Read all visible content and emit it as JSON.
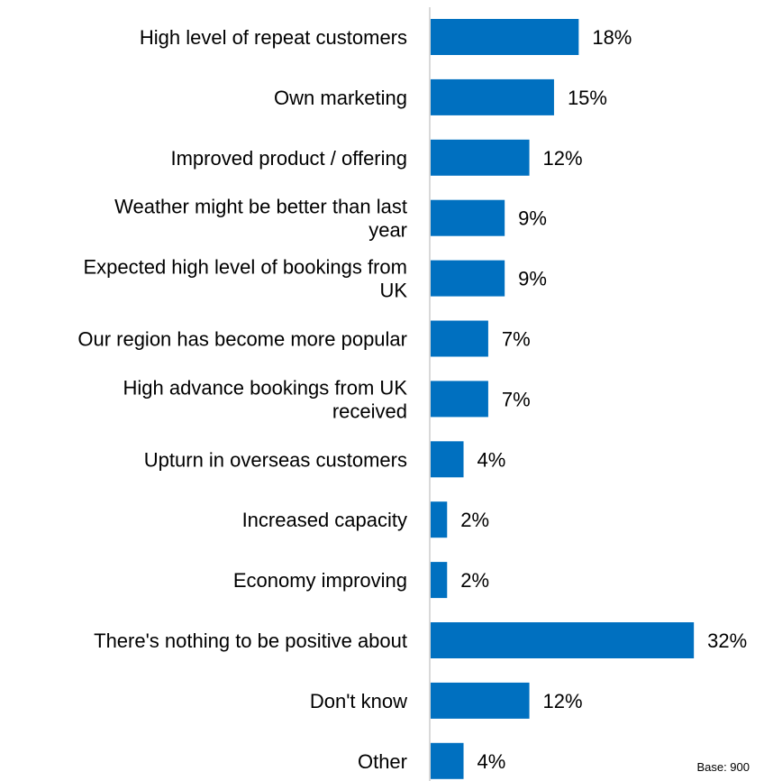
{
  "chart_data": {
    "type": "bar",
    "orientation": "horizontal",
    "categories": [
      [
        "High level of repeat customers"
      ],
      [
        "Own marketing"
      ],
      [
        "Improved product / offering"
      ],
      [
        "Weather might be better than last",
        "year"
      ],
      [
        "Expected high level of bookings from",
        "UK"
      ],
      [
        "Our region has become more popular"
      ],
      [
        "High advance bookings from UK",
        "received"
      ],
      [
        "Upturn in overseas customers"
      ],
      [
        "Increased capacity"
      ],
      [
        "Economy improving"
      ],
      [
        "There's nothing to be positive about"
      ],
      [
        "Don't know"
      ],
      [
        "Other"
      ]
    ],
    "values": [
      18,
      15,
      12,
      9,
      9,
      7,
      7,
      4,
      2,
      2,
      32,
      12,
      4
    ],
    "value_labels": [
      "18%",
      "15%",
      "12%",
      "9%",
      "9%",
      "7%",
      "7%",
      "4%",
      "2%",
      "2%",
      "32%",
      "12%",
      "4%"
    ],
    "unit": "%",
    "bar_color": "#0070C0",
    "axis_color": "#d9d9d9",
    "grid": false,
    "legend": "none"
  },
  "footnote": "Base: 900"
}
